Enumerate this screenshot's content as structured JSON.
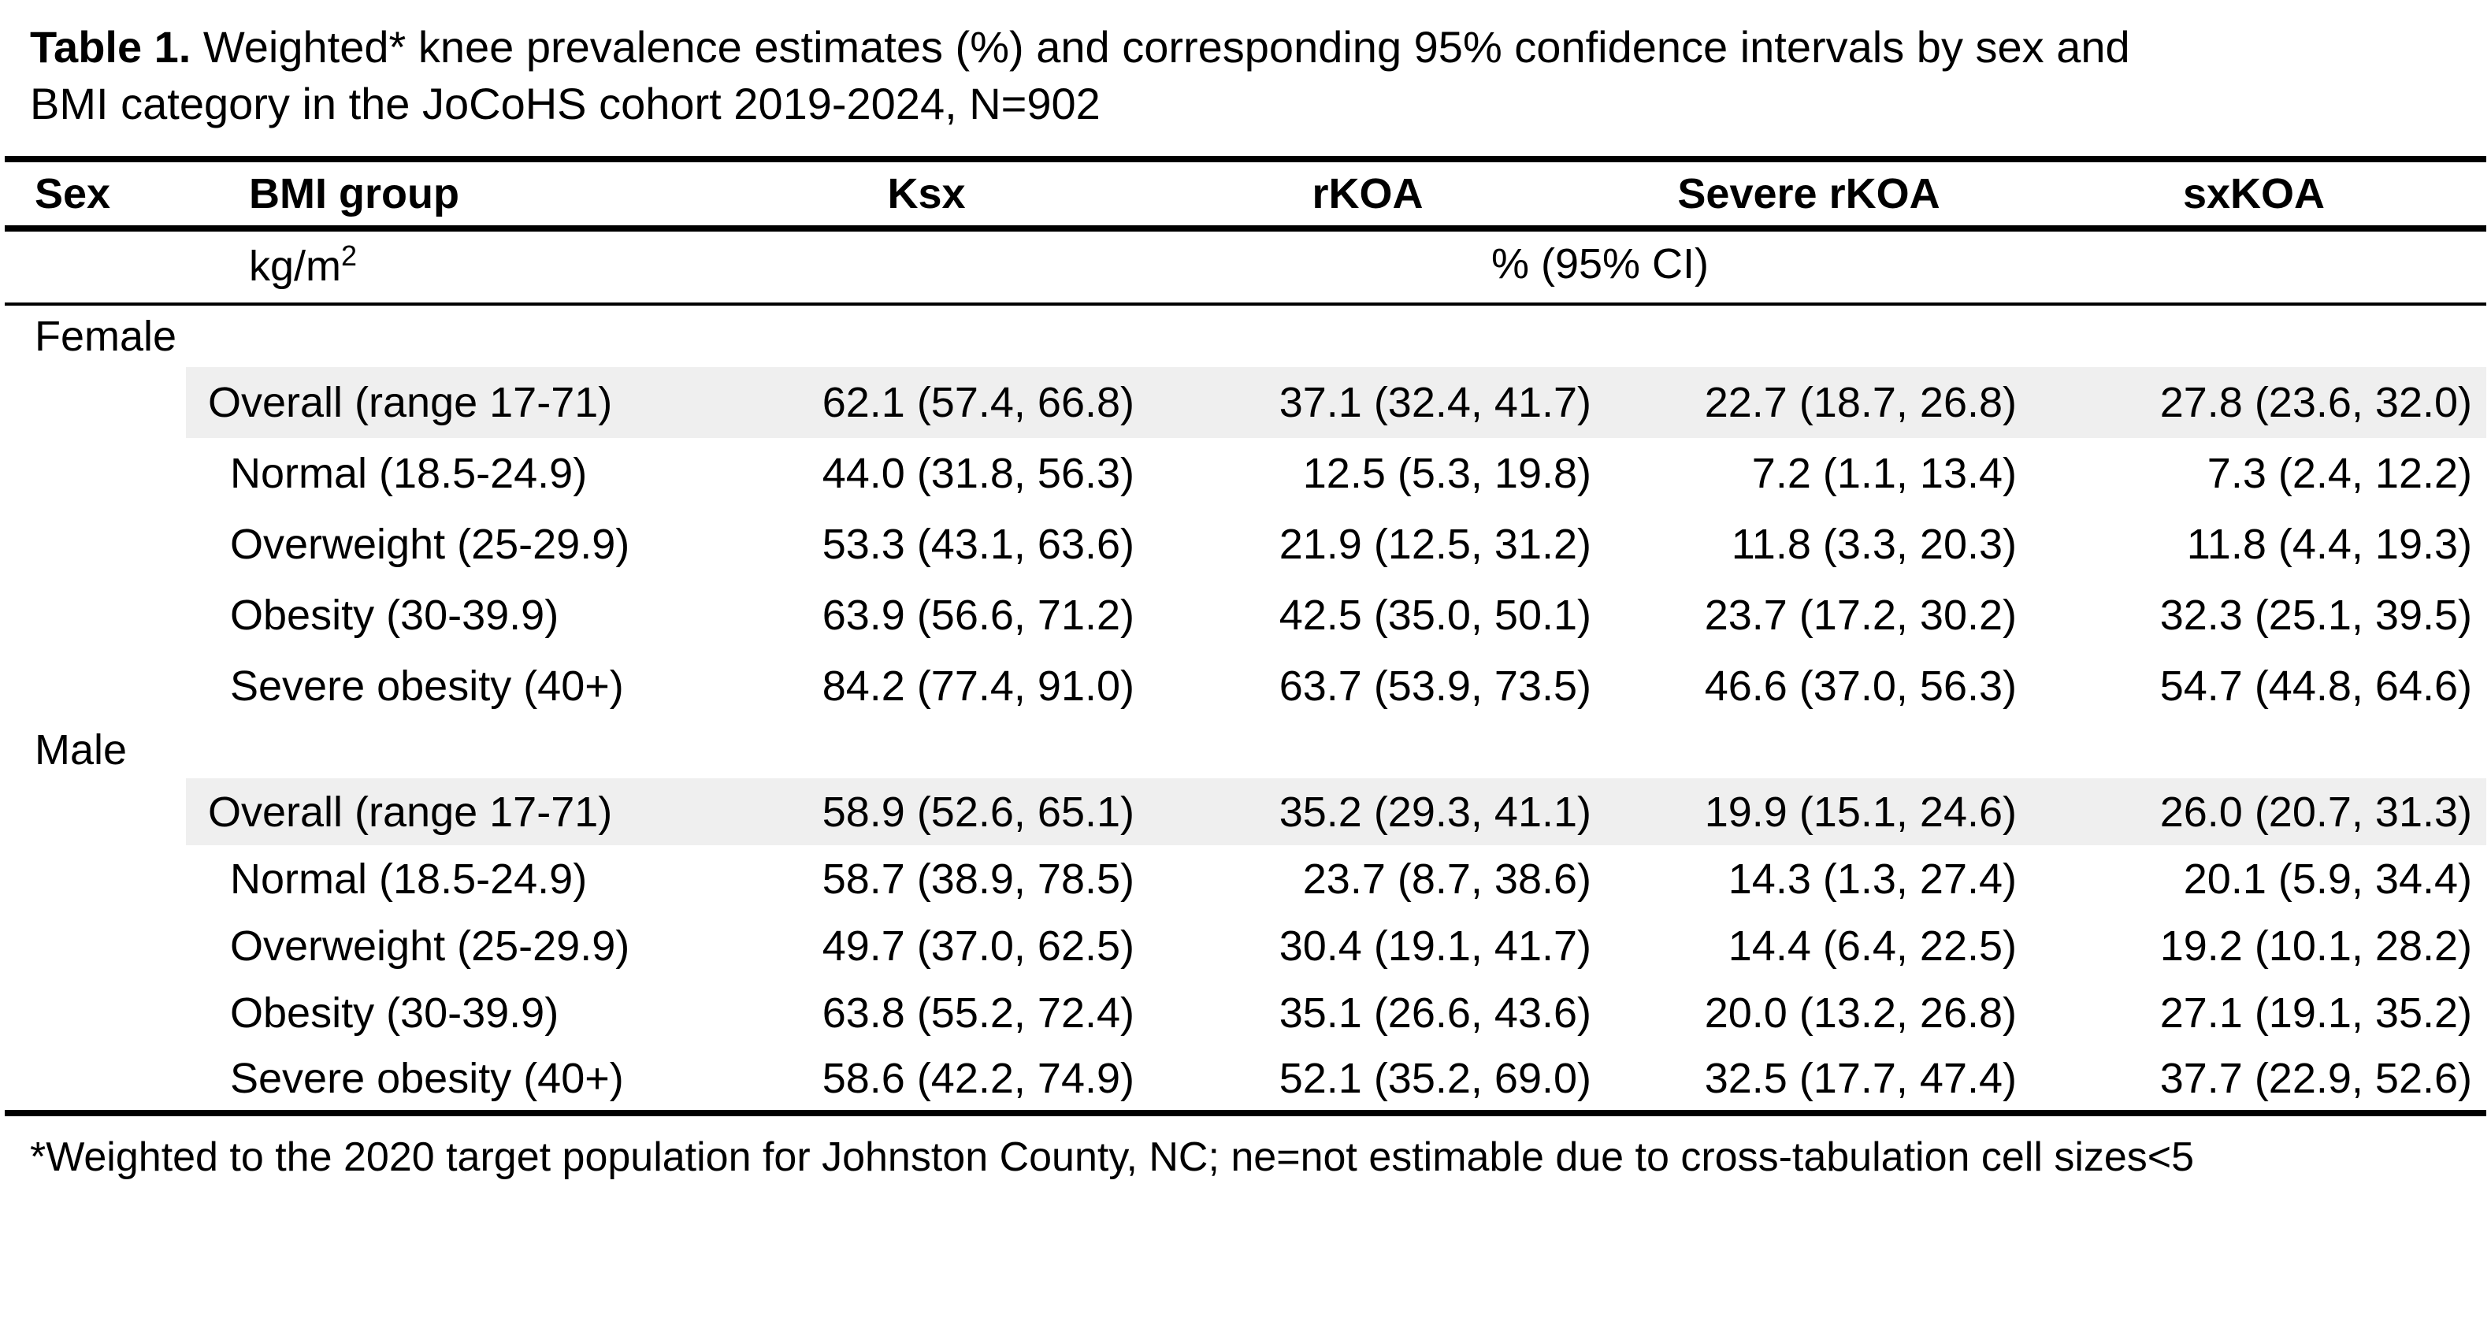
{
  "title": {
    "label": "Table 1.",
    "text": " Weighted* knee prevalence estimates (%) and corresponding 95% confidence intervals by sex and\nBMI category in the JoCoHS cohort 2019-2024, N=902"
  },
  "table": {
    "columns": [
      "Sex",
      "BMI group",
      "Ksx",
      "rKOA",
      "Severe rKOA",
      "sxKOA"
    ],
    "units": {
      "bmi": "kg/m",
      "bmi_sup": "2",
      "ci": "% (95% CI)"
    },
    "sections": [
      {
        "sex": "Female",
        "rows": [
          {
            "bmi": "Overall (range 17-71)",
            "highlight": true,
            "values": [
              "62.1 (57.4, 66.8)",
              "37.1 (32.4, 41.7)",
              "22.7 (18.7, 26.8)",
              "27.8 (23.6, 32.0)"
            ]
          },
          {
            "bmi": "Normal (18.5-24.9)",
            "highlight": false,
            "values": [
              "44.0 (31.8, 56.3)",
              "12.5 (5.3, 19.8)",
              "7.2 (1.1, 13.4)",
              "7.3 (2.4, 12.2)"
            ]
          },
          {
            "bmi": "Overweight (25-29.9)",
            "highlight": false,
            "values": [
              "53.3 (43.1, 63.6)",
              "21.9 (12.5, 31.2)",
              "11.8 (3.3, 20.3)",
              "11.8 (4.4, 19.3)"
            ]
          },
          {
            "bmi": "Obesity (30-39.9)",
            "highlight": false,
            "values": [
              "63.9 (56.6, 71.2)",
              "42.5 (35.0, 50.1)",
              "23.7 (17.2, 30.2)",
              "32.3 (25.1, 39.5)"
            ]
          },
          {
            "bmi": "Severe obesity (40+)",
            "highlight": false,
            "values": [
              "84.2 (77.4, 91.0)",
              "63.7 (53.9, 73.5)",
              "46.6 (37.0, 56.3)",
              "54.7 (44.8, 64.6)"
            ]
          }
        ]
      },
      {
        "sex": "Male",
        "rows": [
          {
            "bmi": "Overall (range 17-71)",
            "highlight": true,
            "values": [
              "58.9 (52.6, 65.1)",
              "35.2 (29.3, 41.1)",
              "19.9 (15.1, 24.6)",
              "26.0 (20.7, 31.3)"
            ]
          },
          {
            "bmi": "Normal (18.5-24.9)",
            "highlight": false,
            "values": [
              "58.7 (38.9, 78.5)",
              "23.7 (8.7, 38.6)",
              "14.3 (1.3, 27.4)",
              "20.1 (5.9, 34.4)"
            ]
          },
          {
            "bmi": "Overweight (25-29.9)",
            "highlight": false,
            "values": [
              "49.7 (37.0, 62.5)",
              "30.4 (19.1, 41.7)",
              "14.4 (6.4, 22.5)",
              "19.2 (10.1, 28.2)"
            ]
          },
          {
            "bmi": "Obesity (30-39.9)",
            "highlight": false,
            "values": [
              "63.8 (55.2, 72.4)",
              "35.1 (26.6, 43.6)",
              "20.0 (13.2, 26.8)",
              "27.1 (19.1, 35.2)"
            ]
          },
          {
            "bmi": "Severe obesity (40+)",
            "highlight": false,
            "values": [
              "58.6 (42.2, 74.9)",
              "52.1 (35.2, 69.0)",
              "32.5 (17.7, 47.4)",
              "37.7 (22.9, 52.6)"
            ]
          }
        ]
      }
    ]
  },
  "footnote": "*Weighted to the 2020 target population for Johnston County, NC; ne=not estimable due to cross-tabulation cell sizes<5",
  "colors": {
    "highlight": "#efefef",
    "rule": "#000000",
    "text": "#000000"
  }
}
